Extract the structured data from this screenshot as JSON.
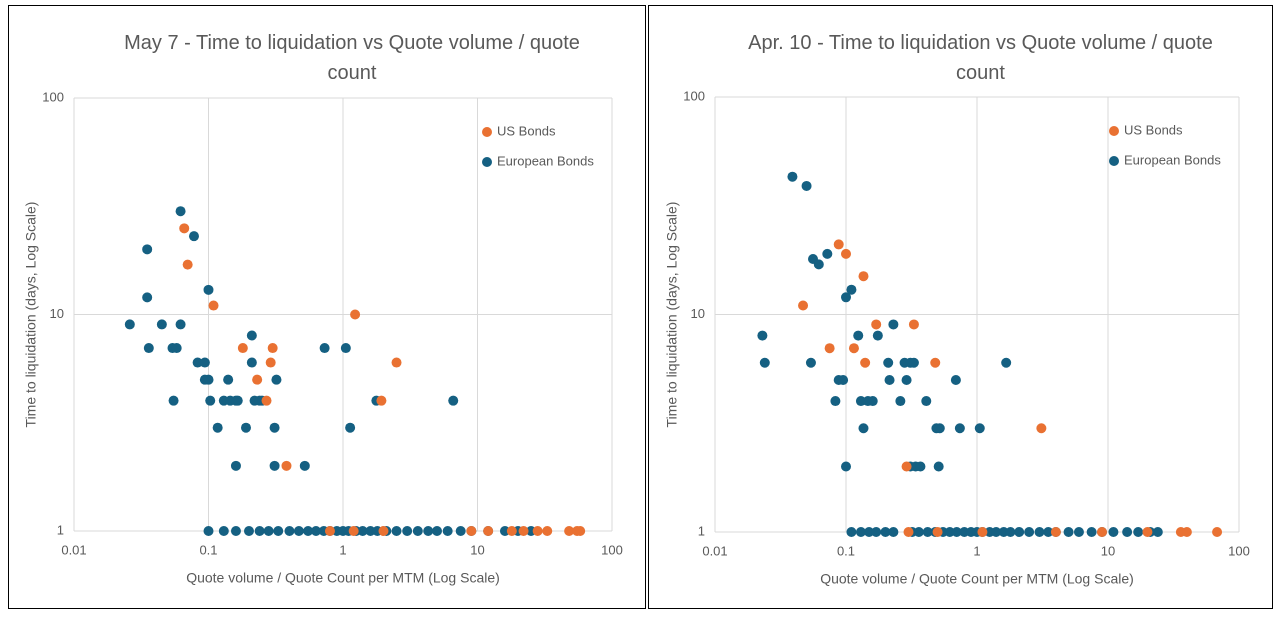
{
  "chart_data": [
    {
      "type": "scatter",
      "title": "May 7 - Time to liquidation vs Quote volume / quote count",
      "x_label": "Quote volume / Quote Count per MTM (Log Scale)",
      "y_label": "Time to liquidation (days, Log Scale)",
      "xscale": "log",
      "yscale": "log",
      "xlim": [
        0.01,
        100
      ],
      "ylim": [
        1,
        100
      ],
      "xticks": [
        0.01,
        0.1,
        1,
        10,
        100
      ],
      "yticks": [
        1,
        10,
        100
      ],
      "grid": true,
      "legend": "top-right",
      "series": [
        {
          "name": "European Bonds",
          "color": "#156082",
          "x": [
            0.026,
            0.035,
            0.035,
            0.036,
            0.045,
            0.054,
            0.058,
            0.055,
            0.062,
            0.062,
            0.078,
            0.083,
            0.094,
            0.094,
            0.1,
            0.1,
            0.103,
            0.117,
            0.13,
            0.14,
            0.145,
            0.16,
            0.16,
            0.165,
            0.19,
            0.21,
            0.21,
            0.22,
            0.24,
            0.25,
            0.31,
            0.31,
            0.32,
            0.52,
            0.73,
            1.05,
            1.13,
            1.77,
            6.6,
            0.1,
            0.13,
            0.16,
            0.2,
            0.24,
            0.28,
            0.33,
            0.4,
            0.47,
            0.55,
            0.63,
            0.72,
            0.8,
            0.9,
            1,
            1.1,
            1.25,
            1.4,
            1.6,
            1.8,
            2.1,
            2.5,
            3,
            3.6,
            4.3,
            5,
            6,
            7.5,
            9,
            12,
            16,
            20,
            25
          ],
          "values": [
            9,
            20,
            12,
            7,
            9,
            7,
            7,
            4,
            30,
            9,
            23,
            6,
            6,
            5,
            5,
            13,
            4,
            3,
            4,
            5,
            4,
            4,
            2,
            4,
            3,
            8,
            6,
            4,
            4,
            4,
            2,
            3,
            5,
            2,
            7,
            7,
            3,
            4,
            4,
            1,
            1,
            1,
            1,
            1,
            1,
            1,
            1,
            1,
            1,
            1,
            1,
            1,
            1,
            1,
            1,
            1,
            1,
            1,
            1,
            1,
            1,
            1,
            1,
            1,
            1,
            1,
            1,
            1,
            1,
            1,
            1,
            1
          ]
        },
        {
          "name": "US Bonds",
          "color": "#e97132",
          "x": [
            0.066,
            0.07,
            0.109,
            0.18,
            0.23,
            0.27,
            0.29,
            0.3,
            0.38,
            1.23,
            1.93,
            2.5,
            0.8,
            1.2,
            2,
            9,
            12,
            18,
            22,
            28,
            33,
            48,
            55,
            58
          ],
          "values": [
            25,
            17,
            11,
            7,
            5,
            4,
            6,
            7,
            2,
            10,
            4,
            6,
            1,
            1,
            1,
            1,
            1,
            1,
            1,
            1,
            1,
            1,
            1,
            1
          ]
        }
      ]
    },
    {
      "type": "scatter",
      "title": "Apr. 10 - Time to liquidation vs Quote volume / quote count",
      "x_label": "Quote volume / Quote Count per MTM (Log Scale)",
      "y_label": "Time to liquidation (days, Log Scale)",
      "xscale": "log",
      "yscale": "log",
      "xlim": [
        0.01,
        100
      ],
      "ylim": [
        1,
        100
      ],
      "xticks": [
        0.01,
        0.1,
        1,
        10,
        100
      ],
      "yticks": [
        1,
        10,
        100
      ],
      "grid": true,
      "legend": "top-right",
      "series": [
        {
          "name": "European Bonds",
          "color": "#156082",
          "x": [
            0.023,
            0.024,
            0.039,
            0.05,
            0.054,
            0.056,
            0.062,
            0.072,
            0.083,
            0.088,
            0.095,
            0.1,
            0.1,
            0.11,
            0.124,
            0.13,
            0.136,
            0.147,
            0.16,
            0.175,
            0.21,
            0.215,
            0.23,
            0.26,
            0.28,
            0.29,
            0.31,
            0.31,
            0.33,
            0.34,
            0.37,
            0.41,
            0.49,
            0.51,
            0.52,
            0.69,
            0.74,
            1.05,
            1.67,
            0.11,
            0.13,
            0.15,
            0.17,
            0.2,
            0.23,
            0.32,
            0.36,
            0.42,
            0.48,
            0.55,
            0.62,
            0.7,
            0.8,
            0.9,
            1,
            1.1,
            1.25,
            1.4,
            1.6,
            1.8,
            2.1,
            2.5,
            3,
            3.5,
            4,
            5,
            6,
            7.5,
            9,
            11,
            14,
            17,
            21,
            24
          ],
          "values": [
            8,
            6,
            43,
            39,
            6,
            18,
            17,
            19,
            4,
            5,
            5,
            2,
            12,
            13,
            8,
            4,
            3,
            4,
            4,
            8,
            6,
            5,
            9,
            4,
            6,
            5,
            6,
            2,
            6,
            2,
            2,
            4,
            3,
            2,
            3,
            5,
            3,
            3,
            6,
            1,
            1,
            1,
            1,
            1,
            1,
            1,
            1,
            1,
            1,
            1,
            1,
            1,
            1,
            1,
            1,
            1,
            1,
            1,
            1,
            1,
            1,
            1,
            1,
            1,
            1,
            1,
            1,
            1,
            1,
            1,
            1,
            1,
            1,
            1
          ]
        },
        {
          "name": "US Bonds",
          "color": "#e97132",
          "x": [
            0.047,
            0.075,
            0.088,
            0.1,
            0.115,
            0.136,
            0.14,
            0.17,
            0.33,
            0.29,
            0.48,
            3.1,
            0.3,
            0.5,
            1.1,
            4,
            9,
            20,
            36,
            40,
            68
          ],
          "values": [
            11,
            7,
            21,
            19,
            7,
            15,
            6,
            9,
            9,
            2,
            6,
            3,
            1,
            1,
            1,
            1,
            1,
            1,
            1,
            1,
            1
          ]
        }
      ]
    }
  ]
}
